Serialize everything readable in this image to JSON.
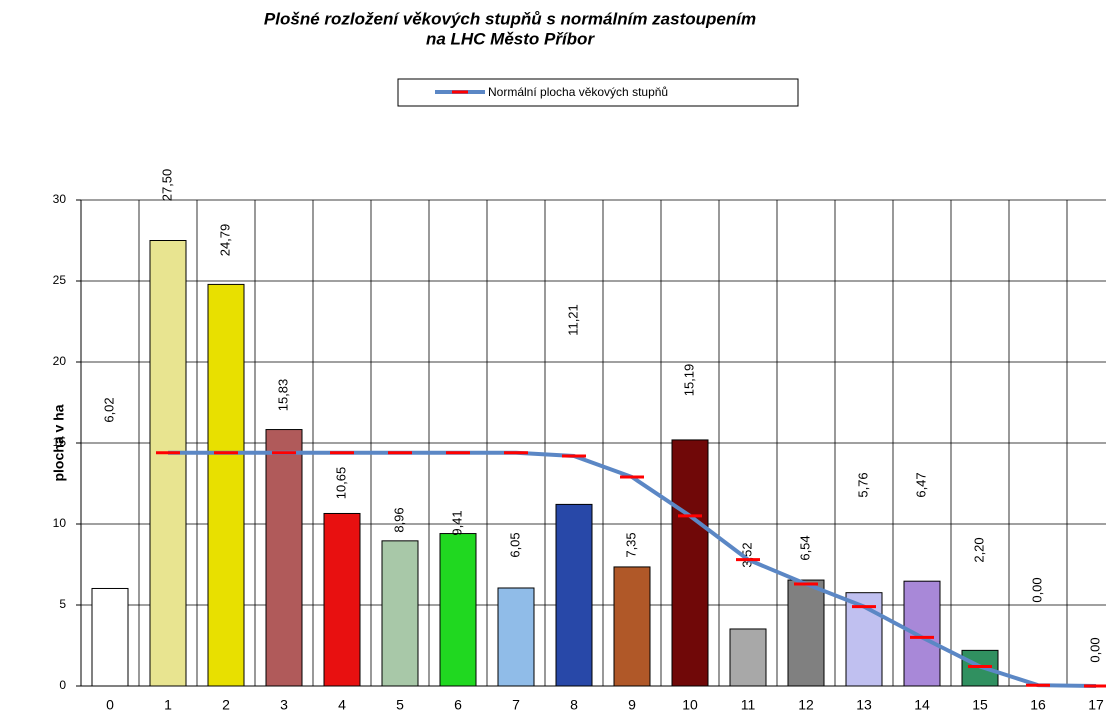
{
  "chart_data": {
    "type": "bar",
    "title": "Plošné rozložení věkových stupňů s normálním zastoupením",
    "subtitle": "na LHC Město Příbor",
    "y_label": "plocha v ha",
    "categories": [
      "0",
      "1",
      "2",
      "3",
      "4",
      "5",
      "6",
      "7",
      "8",
      "9",
      "10",
      "11",
      "12",
      "13",
      "14",
      "15",
      "16",
      "17"
    ],
    "values": [
      6.02,
      27.5,
      24.79,
      15.83,
      10.65,
      8.96,
      9.41,
      6.05,
      11.21,
      7.35,
      15.19,
      3.52,
      6.54,
      5.76,
      6.47,
      2.2,
      0.0,
      0.0
    ],
    "value_labels": [
      "6,02",
      "27,50",
      "24,79",
      "15,83",
      "10,65",
      "8,96",
      "9,41",
      "6,05",
      "11,21",
      "7,35",
      "15,19",
      "3,52",
      "6,54",
      "5,76",
      "6,47",
      "2,20",
      "0,00",
      "0,00"
    ],
    "colors": [
      "#ffffff",
      "#e8e490",
      "#e8e000",
      "#b05a5a",
      "#e81010",
      "#a8c8a8",
      "#20d820",
      "#90bce8",
      "#2848a8",
      "#b05828",
      "#700808",
      "#a8a8a8",
      "#808080",
      "#c0c0f0",
      "#a888d8",
      "#309060",
      "#ffffff",
      "#ffffff"
    ],
    "series": [
      {
        "name": "Normální plocha věkových stupňů",
        "color": "#5b87c5",
        "marker_color": "#ff0000",
        "values": [
          null,
          14.4,
          14.4,
          14.4,
          14.4,
          14.4,
          14.4,
          14.4,
          14.2,
          12.9,
          10.5,
          7.8,
          6.3,
          4.9,
          3.0,
          1.2,
          0.05,
          0
        ]
      }
    ],
    "ylim": [
      0,
      30
    ],
    "yticks": [
      0,
      5,
      10,
      15,
      20,
      25,
      30
    ],
    "grid": true
  }
}
